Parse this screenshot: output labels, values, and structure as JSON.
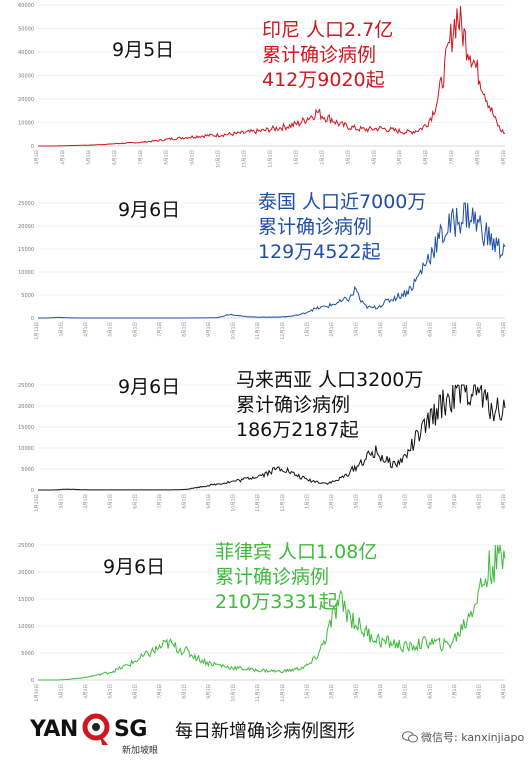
{
  "footer": {
    "logo_left": "YAN",
    "logo_right": "SG",
    "logo_sub": "新加坡眼",
    "caption": "每日新增确诊病例图形",
    "wechat": "微信号: kanxinjiapo"
  },
  "chart_data": [
    {
      "type": "line",
      "date": "9月5日",
      "info": [
        "印尼  人口2.7亿",
        "累计确诊病例",
        "412万9020起"
      ],
      "color": "#d0161f",
      "ylim": [
        0,
        60000
      ],
      "yticks": [
        "0",
        "10000",
        "20000",
        "30000",
        "40000",
        "50000",
        "60000"
      ],
      "series": [
        {
          "values": [
            0,
            0,
            0,
            10,
            50,
            100,
            150,
            200,
            250,
            300,
            350,
            400,
            500,
            600,
            700,
            800,
            1000,
            1100,
            1200,
            1300,
            1400,
            1500,
            1700,
            1900,
            2100,
            2300,
            2600,
            2900,
            3100,
            3300,
            3500,
            3700,
            3900,
            4100,
            4300,
            4400,
            4500,
            4600,
            4800,
            4900,
            5000,
            5200,
            5400,
            5600,
            5900,
            6100,
            6300,
            6600,
            7000,
            7300,
            7700,
            8100,
            8500,
            9000,
            9500,
            10500,
            12000,
            13000,
            14500,
            13000,
            12000,
            11500,
            10000,
            9000,
            8500,
            8000,
            7500,
            7200,
            7000,
            7100,
            7300,
            7500,
            7300,
            7000,
            6600,
            6300,
            6000,
            5900,
            6200,
            6800,
            8000,
            10000,
            14000,
            20000,
            28000,
            38000,
            48000,
            56000,
            50000,
            44000,
            40000,
            33000,
            28000,
            22000,
            16000,
            11000,
            7000,
            5500
          ]
        }
      ],
      "xticks": [
        "3月1日",
        "4月1日",
        "5月1日",
        "6月1日",
        "7月1日",
        "8月1日",
        "9月1日",
        "10月1日",
        "11月1日",
        "12月1日",
        "1月1日",
        "2月1日",
        "3月1日",
        "4月1日",
        "5月1日",
        "6月1日",
        "7月1日",
        "8月1日",
        "9月1日"
      ]
    },
    {
      "type": "line",
      "date": "9月6日",
      "info": [
        "泰国  人口近7000万",
        "累计确诊病例",
        "129万4522起"
      ],
      "color": "#1f4fa8",
      "ylim": [
        0,
        25000
      ],
      "yticks": [
        "0",
        "5000",
        "10000",
        "15000",
        "20000",
        "25000"
      ],
      "series": [
        {
          "values": [
            0,
            0,
            0,
            50,
            150,
            100,
            50,
            20,
            10,
            5,
            5,
            5,
            5,
            5,
            5,
            5,
            5,
            5,
            5,
            5,
            5,
            5,
            5,
            5,
            5,
            5,
            5,
            5,
            5,
            5,
            10,
            10,
            10,
            20,
            30,
            50,
            100,
            300,
            700,
            800,
            600,
            400,
            300,
            250,
            200,
            200,
            200,
            200,
            200,
            250,
            300,
            400,
            600,
            800,
            1200,
            1800,
            2000,
            2300,
            2500,
            2800,
            3200,
            3500,
            4000,
            4500,
            6500,
            3500,
            2500,
            2200,
            2300,
            2800,
            3500,
            4000,
            4500,
            5000,
            5500,
            6500,
            8000,
            10000,
            12000,
            14000,
            16000,
            17500,
            19000,
            20000,
            21000,
            22000,
            23000,
            22500,
            21000,
            20000,
            18500,
            17000,
            16000,
            15000,
            15500
          ]
        }
      ],
      "xticks": [
        "1月13日",
        "3月1日",
        "4月1日",
        "5月1日",
        "6月1日",
        "7月1日",
        "8月1日",
        "9月1日",
        "10月1日",
        "11月1日",
        "12月1日",
        "1月1日",
        "2月1日",
        "3月1日",
        "4月1日",
        "5月1日",
        "6月1日",
        "7月1日",
        "8月1日",
        "9月1日"
      ]
    },
    {
      "type": "line",
      "date": "9月6日",
      "info": [
        "马来西亚  人口3200万",
        "累计确诊病例",
        "186万2187起"
      ],
      "color": "#111111",
      "ylim": [
        0,
        25000
      ],
      "yticks": [
        "0",
        "5000",
        "10000",
        "15000",
        "20000",
        "25000"
      ],
      "series": [
        {
          "values": [
            0,
            0,
            0,
            0,
            50,
            150,
            200,
            150,
            100,
            50,
            30,
            20,
            20,
            20,
            20,
            20,
            20,
            20,
            20,
            20,
            20,
            20,
            20,
            20,
            20,
            20,
            20,
            30,
            50,
            100,
            200,
            400,
            600,
            800,
            1000,
            1200,
            1400,
            1600,
            1800,
            2000,
            2200,
            2400,
            2700,
            3000,
            3300,
            3600,
            4000,
            4500,
            5000,
            5300,
            4800,
            4000,
            3500,
            3000,
            2500,
            2200,
            2000,
            1800,
            1600,
            1800,
            2200,
            2800,
            3500,
            4500,
            5500,
            6500,
            7500,
            8500,
            9000,
            8000,
            7000,
            6500,
            6000,
            7000,
            8000,
            10000,
            12000,
            13500,
            15000,
            17000,
            18500,
            20000,
            21000,
            22000,
            22500,
            23000,
            23500,
            24000,
            24500,
            23000,
            21000,
            20000,
            19500,
            19000,
            19500
          ]
        }
      ],
      "xticks": [
        "1月25日",
        "3月1日",
        "4月1日",
        "5月1日",
        "6月1日",
        "7月1日",
        "8月1日",
        "9月1日",
        "10月1日",
        "11月1日",
        "12月1日",
        "1月1日",
        "2月1日",
        "3月1日",
        "4月1日",
        "5月1日",
        "6月1日",
        "7月1日",
        "8月1日",
        "9月1日"
      ]
    },
    {
      "type": "line",
      "date": "9月6日",
      "info": [
        "菲律宾  人口1.08亿",
        "累计确诊病例",
        "210万3331起"
      ],
      "color": "#3dbb3a",
      "ylim": [
        0,
        25000
      ],
      "yticks": [
        "0",
        "5000",
        "10000",
        "15000",
        "20000",
        "25000"
      ],
      "series": [
        {
          "values": [
            0,
            0,
            0,
            0,
            0,
            50,
            100,
            200,
            300,
            400,
            500,
            700,
            900,
            1100,
            1300,
            1500,
            1800,
            2200,
            2600,
            3000,
            3500,
            4000,
            4500,
            5000,
            5500,
            6000,
            6500,
            6800,
            6200,
            5800,
            5500,
            5000,
            4500,
            4000,
            3500,
            3200,
            3000,
            2800,
            2600,
            2400,
            2300,
            2200,
            2100,
            2000,
            1900,
            1800,
            1800,
            1700,
            1700,
            1600,
            1600,
            1700,
            1800,
            2000,
            2200,
            2500,
            3000,
            4000,
            5500,
            7500,
            10000,
            12500,
            14500,
            13500,
            12000,
            11000,
            10000,
            9000,
            8500,
            8000,
            7500,
            7000,
            7000,
            6800,
            6500,
            6200,
            6000,
            6200,
            6500,
            6800,
            7000,
            7000,
            6800,
            6500,
            6500,
            7000,
            8000,
            9500,
            11000,
            13000,
            15000,
            17000,
            19000,
            21000,
            22000,
            23000,
            22500
          ]
        }
      ],
      "xticks": [
        "1月30日",
        "3月1日",
        "4月1日",
        "5月1日",
        "6月1日",
        "7月1日",
        "8月1日",
        "9月1日",
        "10月1日",
        "11月1日",
        "12月1日",
        "1月1日",
        "2月1日",
        "3月1日",
        "4月1日",
        "5月1日",
        "6月1日",
        "7月1日",
        "8月1日",
        "9月1日"
      ]
    }
  ]
}
